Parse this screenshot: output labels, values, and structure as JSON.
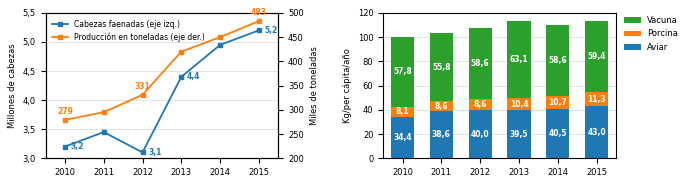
{
  "chart_data": [
    {
      "type": "line",
      "categories": [
        "2010",
        "2011",
        "2012",
        "2013",
        "2014",
        "2015"
      ],
      "series": [
        {
          "name": "Cabezas faenadas (eje izq.)",
          "values": [
            3.2,
            3.45,
            3.1,
            4.4,
            4.95,
            5.2
          ],
          "value_labels": [
            "3,2",
            null,
            "3,1",
            "4,4",
            null,
            "5,2"
          ],
          "marker": "square"
        },
        {
          "name": "Producción en toneladas (eje der.)",
          "values": [
            279,
            295,
            331,
            420,
            450,
            483
          ],
          "value_labels": [
            "279",
            null,
            "331",
            null,
            null,
            "483"
          ],
          "axis": "y2",
          "marker": "square"
        }
      ],
      "ylabel": "Millones de cabezas",
      "y2label": "Miles de toneladas",
      "ylim": [
        3.0,
        5.5
      ],
      "yticks": [
        {
          "value": 3.0,
          "label": "3,0"
        },
        {
          "value": 3.5,
          "label": "3,5"
        },
        {
          "value": 4.0,
          "label": "4,0"
        },
        {
          "value": 4.5,
          "label": "4,5"
        },
        {
          "value": 5.0,
          "label": "5,0"
        },
        {
          "value": 5.5,
          "label": "5,5"
        }
      ],
      "y2lim": [
        200,
        500
      ],
      "y2ticks": [
        200,
        250,
        300,
        350,
        400,
        450,
        500
      ],
      "grid": true,
      "legend": "upper left",
      "data_labels": true
    },
    {
      "type": "bar",
      "stacked": true,
      "categories": [
        "2010",
        "2011",
        "2012",
        "2013",
        "2014",
        "2015"
      ],
      "series": [
        {
          "name": "Aviar",
          "values": [
            34.4,
            38.6,
            40.0,
            39.5,
            40.5,
            43.0
          ],
          "value_labels": [
            "34,4",
            "38,6",
            "40,0",
            "39,5",
            "40,5",
            "43,0"
          ]
        },
        {
          "name": "Porcina",
          "values": [
            8.1,
            8.6,
            8.6,
            10.4,
            10.7,
            11.3
          ],
          "value_labels": [
            "8,1",
            "8,6",
            "8,6",
            "10,4",
            "10,7",
            "11,3"
          ]
        },
        {
          "name": "Vacuna",
          "values": [
            57.8,
            55.8,
            58.6,
            63.1,
            58.6,
            59.4
          ],
          "value_labels": [
            "57,8",
            "55,8",
            "58,6",
            "63,1",
            "58,6",
            "59,4"
          ]
        }
      ],
      "ylabel": "Kg/per cápita/año",
      "ylim": [
        0,
        120
      ],
      "yticks": [
        0,
        20,
        40,
        60,
        80,
        100,
        120
      ],
      "grid": true,
      "legend": "upper right",
      "data_labels": true
    }
  ]
}
